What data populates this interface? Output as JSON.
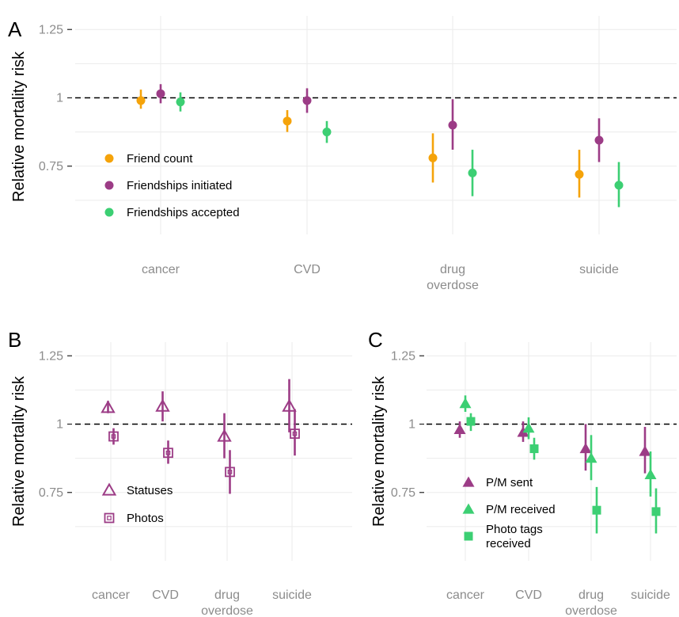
{
  "colors": {
    "orange": "#f5a30a",
    "purple": "#9c3c86",
    "green": "#3ccf73"
  },
  "chart_data": [
    {
      "panel": "A",
      "type": "scatter",
      "ylabel": "Relative mortality risk",
      "yticks": [
        "1.25",
        "1",
        "0.75"
      ],
      "ytick_values": [
        1.25,
        1.0,
        0.75
      ],
      "ylim": [
        0.5,
        1.3
      ],
      "reference_line": 1.0,
      "categories": [
        [
          "cancer"
        ],
        [
          "CVD"
        ],
        [
          "drug",
          "overdose"
        ],
        [
          "suicide"
        ]
      ],
      "legend_position": "bottom-left",
      "series": [
        {
          "name": "Friend count",
          "color": "orange",
          "shape": "circle",
          "values": [
            0.99,
            0.915,
            0.78,
            0.72
          ],
          "lower": [
            0.96,
            0.875,
            0.69,
            0.635
          ],
          "upper": [
            1.03,
            0.955,
            0.87,
            0.81
          ]
        },
        {
          "name": "Friendships initiated",
          "color": "purple",
          "shape": "circle",
          "values": [
            1.015,
            0.99,
            0.9,
            0.845
          ],
          "lower": [
            0.98,
            0.945,
            0.81,
            0.765
          ],
          "upper": [
            1.05,
            1.035,
            0.995,
            0.925
          ]
        },
        {
          "name": "Friendships accepted",
          "color": "green",
          "shape": "circle",
          "values": [
            0.985,
            0.875,
            0.725,
            0.68
          ],
          "lower": [
            0.95,
            0.835,
            0.64,
            0.6
          ],
          "upper": [
            1.02,
            0.915,
            0.81,
            0.765
          ]
        }
      ]
    },
    {
      "panel": "B",
      "type": "scatter",
      "ylabel": "Relative mortality risk",
      "yticks": [
        "1.25",
        "1",
        "0.75"
      ],
      "ytick_values": [
        1.25,
        1.0,
        0.75
      ],
      "ylim": [
        0.5,
        1.3
      ],
      "reference_line": 1.0,
      "categories": [
        [
          "cancer"
        ],
        [
          "CVD"
        ],
        [
          "drug",
          "overdose"
        ],
        [
          "suicide"
        ]
      ],
      "legend_position": "bottom-left",
      "series": [
        {
          "name": "Statuses",
          "color": "purple",
          "shape": "triangle-open",
          "values": [
            1.06,
            1.065,
            0.955,
            1.065
          ],
          "lower": [
            1.04,
            1.01,
            0.875,
            0.97
          ],
          "upper": [
            1.085,
            1.12,
            1.04,
            1.165
          ]
        },
        {
          "name": "Photos",
          "color": "purple",
          "shape": "square-open",
          "values": [
            0.955,
            0.895,
            0.825,
            0.965
          ],
          "lower": [
            0.925,
            0.855,
            0.745,
            0.885
          ],
          "upper": [
            0.985,
            0.94,
            0.905,
            1.055
          ]
        }
      ]
    },
    {
      "panel": "C",
      "type": "scatter",
      "ylabel": "Relative mortality risk",
      "yticks": [
        "1.25",
        "1",
        "0.75"
      ],
      "ytick_values": [
        1.25,
        1.0,
        0.75
      ],
      "ylim": [
        0.5,
        1.3
      ],
      "reference_line": 1.0,
      "categories": [
        [
          "cancer"
        ],
        [
          "CVD"
        ],
        [
          "drug",
          "overdose"
        ],
        [
          "suicide"
        ]
      ],
      "legend_position": "bottom-left",
      "series": [
        {
          "name": [
            "P/M sent"
          ],
          "color": "purple",
          "shape": "triangle",
          "values": [
            0.98,
            0.97,
            0.91,
            0.9
          ],
          "lower": [
            0.95,
            0.935,
            0.83,
            0.82
          ],
          "upper": [
            1.01,
            1.01,
            1.0,
            0.99
          ]
        },
        {
          "name": [
            "P/M received"
          ],
          "color": "green",
          "shape": "triangle",
          "values": [
            1.075,
            0.985,
            0.875,
            0.815
          ],
          "lower": [
            1.045,
            0.945,
            0.795,
            0.735
          ],
          "upper": [
            1.105,
            1.025,
            0.96,
            0.9
          ]
        },
        {
          "name": [
            "Photo tags",
            "received"
          ],
          "color": "green",
          "shape": "square",
          "values": [
            1.01,
            0.91,
            0.685,
            0.68
          ],
          "lower": [
            0.975,
            0.87,
            0.6,
            0.6
          ],
          "upper": [
            1.04,
            0.95,
            0.77,
            0.765
          ]
        }
      ]
    }
  ]
}
